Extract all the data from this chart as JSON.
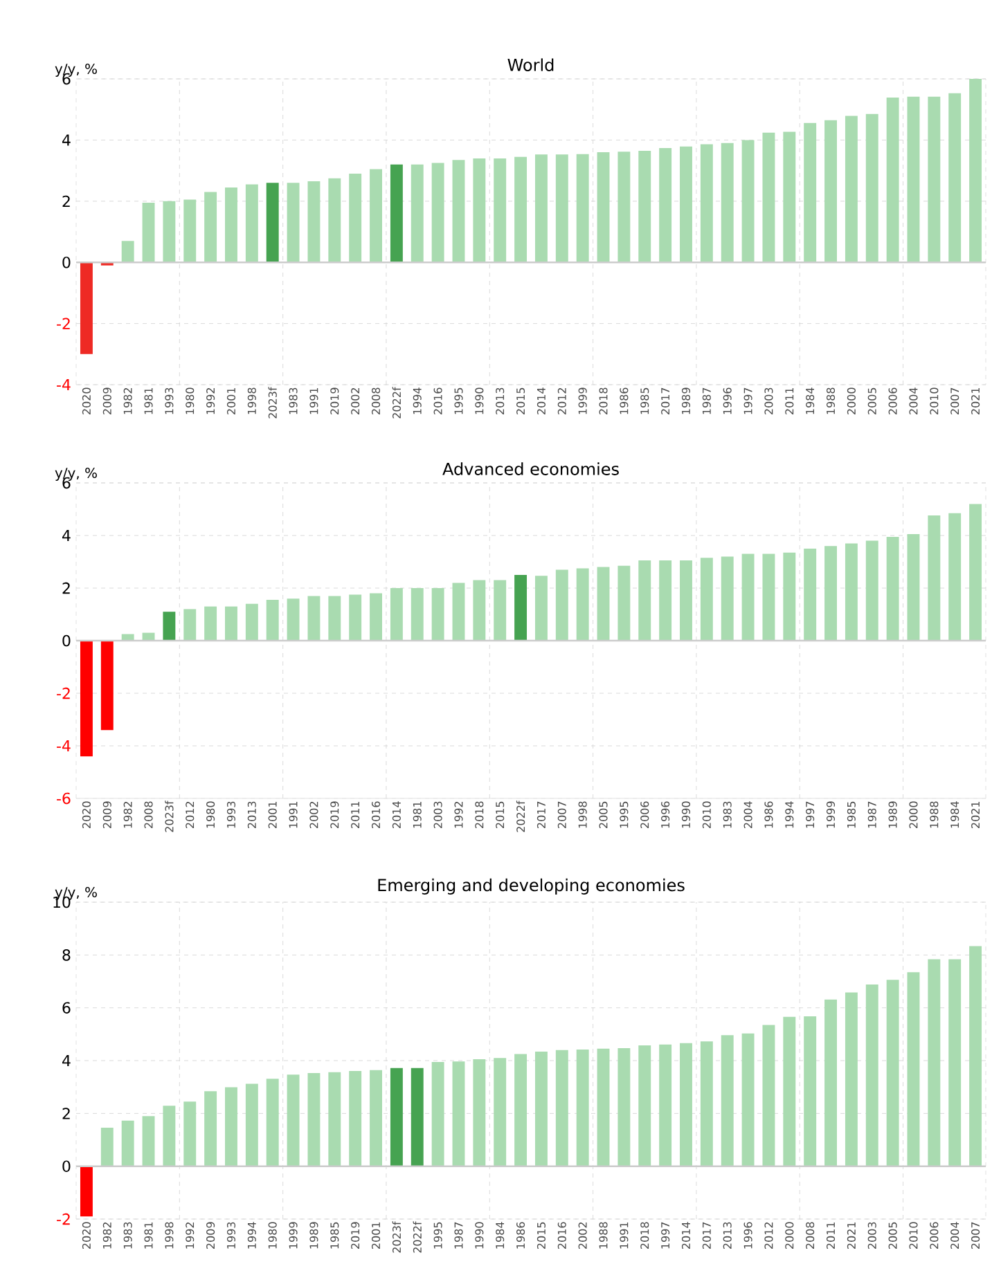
{
  "chart_data": [
    {
      "type": "bar",
      "title": "World",
      "ylabel": "y/y, %",
      "grid": true,
      "ylim": [
        -4,
        6
      ],
      "yticks": [
        -4,
        -2,
        0,
        2,
        4,
        6
      ],
      "categories": [
        "2020",
        "2009",
        "1982",
        "1981",
        "1993",
        "1980",
        "1992",
        "2001",
        "1998",
        "2023f",
        "1983",
        "1991",
        "2019",
        "2002",
        "2008",
        "2022f",
        "1994",
        "2016",
        "1995",
        "1990",
        "2013",
        "2015",
        "2014",
        "2012",
        "1999",
        "2018",
        "1986",
        "1985",
        "2017",
        "1989",
        "1987",
        "1996",
        "1997",
        "2003",
        "2011",
        "1984",
        "1988",
        "2000",
        "2005",
        "2006",
        "2004",
        "2010",
        "2007",
        "2021"
      ],
      "values": [
        -3.0,
        -0.1,
        0.7,
        1.95,
        2.0,
        2.05,
        2.3,
        2.45,
        2.55,
        2.6,
        2.6,
        2.65,
        2.75,
        2.9,
        3.05,
        3.2,
        3.2,
        3.25,
        3.35,
        3.4,
        3.4,
        3.45,
        3.53,
        3.53,
        3.54,
        3.6,
        3.62,
        3.65,
        3.74,
        3.79,
        3.86,
        3.9,
        4.0,
        4.24,
        4.27,
        4.56,
        4.65,
        4.79,
        4.85,
        5.39,
        5.42,
        5.42,
        5.53,
        6.0
      ],
      "colors": [
        "#ee2a24",
        "#ee2a24",
        "#a9dbb0",
        "#a9dbb0",
        "#a9dbb0",
        "#a9dbb0",
        "#a9dbb0",
        "#a9dbb0",
        "#a9dbb0",
        "#46a351",
        "#a9dbb0",
        "#a9dbb0",
        "#a9dbb0",
        "#a9dbb0",
        "#a9dbb0",
        "#46a351",
        "#a9dbb0",
        "#a9dbb0",
        "#a9dbb0",
        "#a9dbb0",
        "#a9dbb0",
        "#a9dbb0",
        "#a9dbb0",
        "#a9dbb0",
        "#a9dbb0",
        "#a9dbb0",
        "#a9dbb0",
        "#a9dbb0",
        "#a9dbb0",
        "#a9dbb0",
        "#a9dbb0",
        "#a9dbb0",
        "#a9dbb0",
        "#a9dbb0",
        "#a9dbb0",
        "#a9dbb0",
        "#a9dbb0",
        "#a9dbb0",
        "#a9dbb0",
        "#a9dbb0",
        "#a9dbb0",
        "#a9dbb0",
        "#a9dbb0",
        "#a9dbb0"
      ]
    },
    {
      "type": "bar",
      "title": "Advanced economies",
      "ylabel": "y/y, %",
      "grid": true,
      "ylim": [
        -6,
        6
      ],
      "yticks": [
        -6,
        -4,
        -2,
        0,
        2,
        4,
        6
      ],
      "categories": [
        "2020",
        "2009",
        "1982",
        "2008",
        "2023f",
        "2012",
        "1980",
        "1993",
        "2013",
        "2001",
        "1991",
        "2002",
        "2019",
        "2011",
        "2016",
        "2014",
        "1981",
        "2003",
        "1992",
        "2018",
        "2015",
        "2022f",
        "2017",
        "2007",
        "1998",
        "2005",
        "1995",
        "2006",
        "1996",
        "1990",
        "2010",
        "1983",
        "2004",
        "1986",
        "1994",
        "1997",
        "1999",
        "1985",
        "1987",
        "1989",
        "2000",
        "1988",
        "1984",
        "2021"
      ],
      "values": [
        -4.4,
        -3.4,
        0.25,
        0.3,
        1.1,
        1.2,
        1.3,
        1.3,
        1.4,
        1.55,
        1.6,
        1.7,
        1.7,
        1.75,
        1.8,
        2.0,
        2.0,
        2.0,
        2.2,
        2.3,
        2.3,
        2.5,
        2.47,
        2.7,
        2.75,
        2.8,
        2.85,
        3.05,
        3.05,
        3.05,
        3.15,
        3.2,
        3.3,
        3.3,
        3.35,
        3.5,
        3.6,
        3.7,
        3.8,
        3.95,
        4.05,
        4.76,
        4.85,
        5.2
      ],
      "colors": [
        "#ff0000",
        "#ff0000",
        "#a9dbb0",
        "#a9dbb0",
        "#46a351",
        "#a9dbb0",
        "#a9dbb0",
        "#a9dbb0",
        "#a9dbb0",
        "#a9dbb0",
        "#a9dbb0",
        "#a9dbb0",
        "#a9dbb0",
        "#a9dbb0",
        "#a9dbb0",
        "#a9dbb0",
        "#a9dbb0",
        "#a9dbb0",
        "#a9dbb0",
        "#a9dbb0",
        "#a9dbb0",
        "#46a351",
        "#a9dbb0",
        "#a9dbb0",
        "#a9dbb0",
        "#a9dbb0",
        "#a9dbb0",
        "#a9dbb0",
        "#a9dbb0",
        "#a9dbb0",
        "#a9dbb0",
        "#a9dbb0",
        "#a9dbb0",
        "#a9dbb0",
        "#a9dbb0",
        "#a9dbb0",
        "#a9dbb0",
        "#a9dbb0",
        "#a9dbb0",
        "#a9dbb0",
        "#a9dbb0",
        "#a9dbb0",
        "#a9dbb0",
        "#a9dbb0"
      ]
    },
    {
      "type": "bar",
      "title": "Emerging and developing economies",
      "ylabel": "y/y, %",
      "grid": true,
      "ylim": [
        -2,
        10
      ],
      "yticks": [
        -2,
        0,
        2,
        4,
        6,
        8,
        10
      ],
      "categories": [
        "2020",
        "1982",
        "1983",
        "1981",
        "1998",
        "1992",
        "2009",
        "1993",
        "1994",
        "1980",
        "1999",
        "1989",
        "1985",
        "2019",
        "2001",
        "2023f",
        "2022f",
        "1995",
        "1987",
        "1990",
        "1984",
        "1986",
        "2015",
        "2016",
        "2002",
        "1988",
        "1991",
        "2018",
        "1997",
        "2014",
        "2017",
        "2013",
        "1996",
        "2012",
        "2000",
        "2008",
        "2011",
        "2021",
        "2003",
        "2005",
        "2010",
        "2006",
        "2004",
        "2007"
      ],
      "values": [
        -1.9,
        1.46,
        1.73,
        1.9,
        2.29,
        2.45,
        2.84,
        2.99,
        3.12,
        3.31,
        3.47,
        3.53,
        3.56,
        3.61,
        3.64,
        3.72,
        3.72,
        3.95,
        3.97,
        4.05,
        4.1,
        4.25,
        4.34,
        4.4,
        4.42,
        4.45,
        4.47,
        4.58,
        4.61,
        4.66,
        4.73,
        4.96,
        5.03,
        5.35,
        5.66,
        5.68,
        6.31,
        6.58,
        6.88,
        7.06,
        7.35,
        7.84,
        7.84,
        8.34
      ],
      "colors": [
        "#ff0000",
        "#a9dbb0",
        "#a9dbb0",
        "#a9dbb0",
        "#a9dbb0",
        "#a9dbb0",
        "#a9dbb0",
        "#a9dbb0",
        "#a9dbb0",
        "#a9dbb0",
        "#a9dbb0",
        "#a9dbb0",
        "#a9dbb0",
        "#a9dbb0",
        "#a9dbb0",
        "#46a351",
        "#46a351",
        "#a9dbb0",
        "#a9dbb0",
        "#a9dbb0",
        "#a9dbb0",
        "#a9dbb0",
        "#a9dbb0",
        "#a9dbb0",
        "#a9dbb0",
        "#a9dbb0",
        "#a9dbb0",
        "#a9dbb0",
        "#a9dbb0",
        "#a9dbb0",
        "#a9dbb0",
        "#a9dbb0",
        "#a9dbb0",
        "#a9dbb0",
        "#a9dbb0",
        "#a9dbb0",
        "#a9dbb0",
        "#a9dbb0",
        "#a9dbb0",
        "#a9dbb0",
        "#a9dbb0",
        "#a9dbb0",
        "#a9dbb0",
        "#a9dbb0"
      ]
    }
  ]
}
